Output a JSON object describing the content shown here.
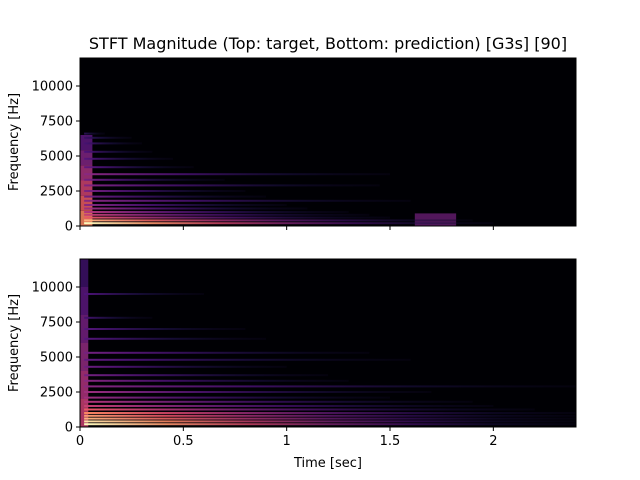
{
  "chart_data": {
    "type": "heatmap",
    "title": "STFT Magnitude (Top: target, Bottom: prediction) [G3s] [90]",
    "colormap": "magma",
    "x_range": [
      0,
      2.4
    ],
    "y_range": [
      0,
      12000
    ],
    "xticks": [
      {
        "value": 0,
        "label": "0"
      },
      {
        "value": 0.5,
        "label": "0.5"
      },
      {
        "value": 1,
        "label": "1"
      },
      {
        "value": 1.5,
        "label": "1.5"
      },
      {
        "value": 2,
        "label": "2"
      }
    ],
    "yticks": [
      {
        "value": 0,
        "label": "0"
      },
      {
        "value": 2500,
        "label": "2500"
      },
      {
        "value": 5000,
        "label": "5000"
      },
      {
        "value": 7500,
        "label": "7500"
      },
      {
        "value": 10000,
        "label": "10000"
      }
    ],
    "panels": [
      {
        "name": "target",
        "ylabel": "Frequency [Hz]",
        "xlabel": "",
        "show_xtick_labels": false,
        "harmonics": [
          {
            "freq": 200,
            "end": 2.0,
            "intensity": 0.95
          },
          {
            "freq": 400,
            "end": 1.9,
            "intensity": 0.8
          },
          {
            "freq": 600,
            "end": 1.5,
            "intensity": 0.6
          },
          {
            "freq": 800,
            "end": 1.4,
            "intensity": 0.5
          },
          {
            "freq": 1000,
            "end": 1.3,
            "intensity": 0.45
          },
          {
            "freq": 1250,
            "end": 1.1,
            "intensity": 0.4
          },
          {
            "freq": 1500,
            "end": 1.0,
            "intensity": 0.35
          },
          {
            "freq": 1800,
            "end": 1.6,
            "intensity": 0.35
          },
          {
            "freq": 2100,
            "end": 0.9,
            "intensity": 0.3
          },
          {
            "freq": 2500,
            "end": 0.8,
            "intensity": 0.32
          },
          {
            "freq": 2900,
            "end": 1.45,
            "intensity": 0.33
          },
          {
            "freq": 3300,
            "end": 0.7,
            "intensity": 0.3
          },
          {
            "freq": 3700,
            "end": 1.5,
            "intensity": 0.35
          },
          {
            "freq": 4200,
            "end": 0.55,
            "intensity": 0.25
          },
          {
            "freq": 4800,
            "end": 0.45,
            "intensity": 0.22
          },
          {
            "freq": 5300,
            "end": 0.35,
            "intensity": 0.2
          },
          {
            "freq": 5900,
            "end": 0.3,
            "intensity": 0.18
          },
          {
            "freq": 6300,
            "end": 0.25,
            "intensity": 0.15
          },
          {
            "freq": 6600,
            "end": 0.12,
            "intensity": 0.12
          }
        ],
        "attack": {
          "start": 0.0,
          "end": 0.06,
          "fmax": 6500,
          "intensity": 0.75
        },
        "blobs": [
          {
            "t0": 1.62,
            "t1": 1.82,
            "f0": 0,
            "f1": 900,
            "intensity": 0.35
          }
        ]
      },
      {
        "name": "prediction",
        "ylabel": "Frequency [Hz]",
        "xlabel": "Time [sec]",
        "show_xtick_labels": true,
        "harmonics": [
          {
            "freq": 200,
            "end": 2.4,
            "intensity": 0.95
          },
          {
            "freq": 400,
            "end": 2.4,
            "intensity": 0.9
          },
          {
            "freq": 600,
            "end": 2.4,
            "intensity": 0.8
          },
          {
            "freq": 800,
            "end": 2.4,
            "intensity": 0.75
          },
          {
            "freq": 1000,
            "end": 2.4,
            "intensity": 0.7
          },
          {
            "freq": 1250,
            "end": 2.2,
            "intensity": 0.6
          },
          {
            "freq": 1500,
            "end": 2.0,
            "intensity": 0.5
          },
          {
            "freq": 1800,
            "end": 1.9,
            "intensity": 0.45
          },
          {
            "freq": 2100,
            "end": 1.5,
            "intensity": 0.4
          },
          {
            "freq": 2500,
            "end": 1.7,
            "intensity": 0.4
          },
          {
            "freq": 2900,
            "end": 2.4,
            "intensity": 0.35
          },
          {
            "freq": 3300,
            "end": 1.3,
            "intensity": 0.35
          },
          {
            "freq": 3700,
            "end": 1.2,
            "intensity": 0.3
          },
          {
            "freq": 4300,
            "end": 1.0,
            "intensity": 0.28
          },
          {
            "freq": 4800,
            "end": 1.6,
            "intensity": 0.25
          },
          {
            "freq": 5300,
            "end": 1.4,
            "intensity": 0.3
          },
          {
            "freq": 6300,
            "end": 0.9,
            "intensity": 0.22
          },
          {
            "freq": 7000,
            "end": 0.8,
            "intensity": 0.22
          },
          {
            "freq": 7800,
            "end": 0.35,
            "intensity": 0.18
          },
          {
            "freq": 9500,
            "end": 0.6,
            "intensity": 0.2
          }
        ],
        "attack": {
          "start": 0.0,
          "end": 0.04,
          "fmax": 12000,
          "intensity": 0.55
        },
        "blobs": []
      }
    ]
  }
}
